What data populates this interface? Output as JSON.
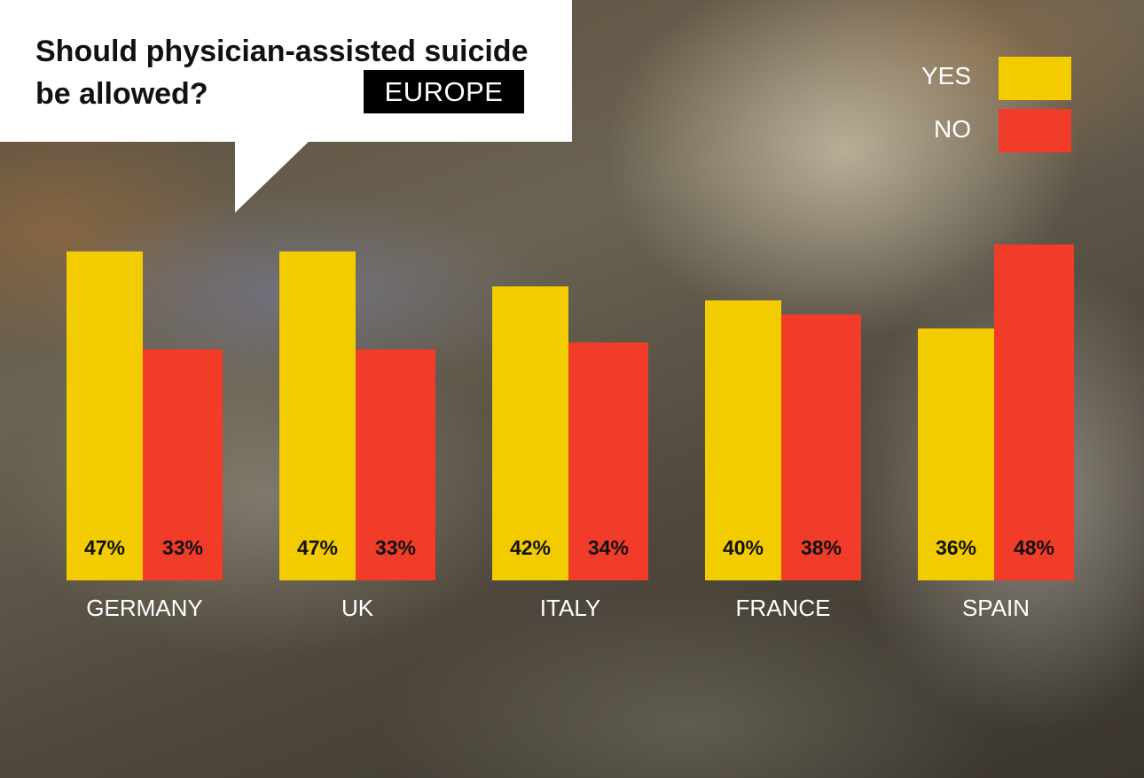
{
  "title": "Should physician-assisted suicide be allowed?",
  "region_badge": "EUROPE",
  "legend": [
    {
      "label": "YES",
      "color": "#f2cb00"
    },
    {
      "label": "NO",
      "color": "#f03c28"
    }
  ],
  "colors": {
    "yes": "#f2cb00",
    "no": "#f03c28",
    "bubble": "#ffffff",
    "badge": "#000000"
  },
  "chart_data": {
    "type": "bar",
    "title": "Should physician-assisted suicide be allowed?",
    "categories": [
      "GERMANY",
      "UK",
      "ITALY",
      "FRANCE",
      "SPAIN"
    ],
    "series": [
      {
        "name": "YES",
        "values": [
          47,
          47,
          42,
          40,
          36
        ],
        "labels": [
          "47%",
          "47%",
          "42%",
          "40%",
          "36%"
        ]
      },
      {
        "name": "NO",
        "values": [
          33,
          33,
          34,
          38,
          48
        ],
        "labels": [
          "33%",
          "33%",
          "34%",
          "38%",
          "48%"
        ]
      }
    ],
    "ylim": [
      0,
      50
    ],
    "grid": false,
    "legend_position": "top-right"
  }
}
